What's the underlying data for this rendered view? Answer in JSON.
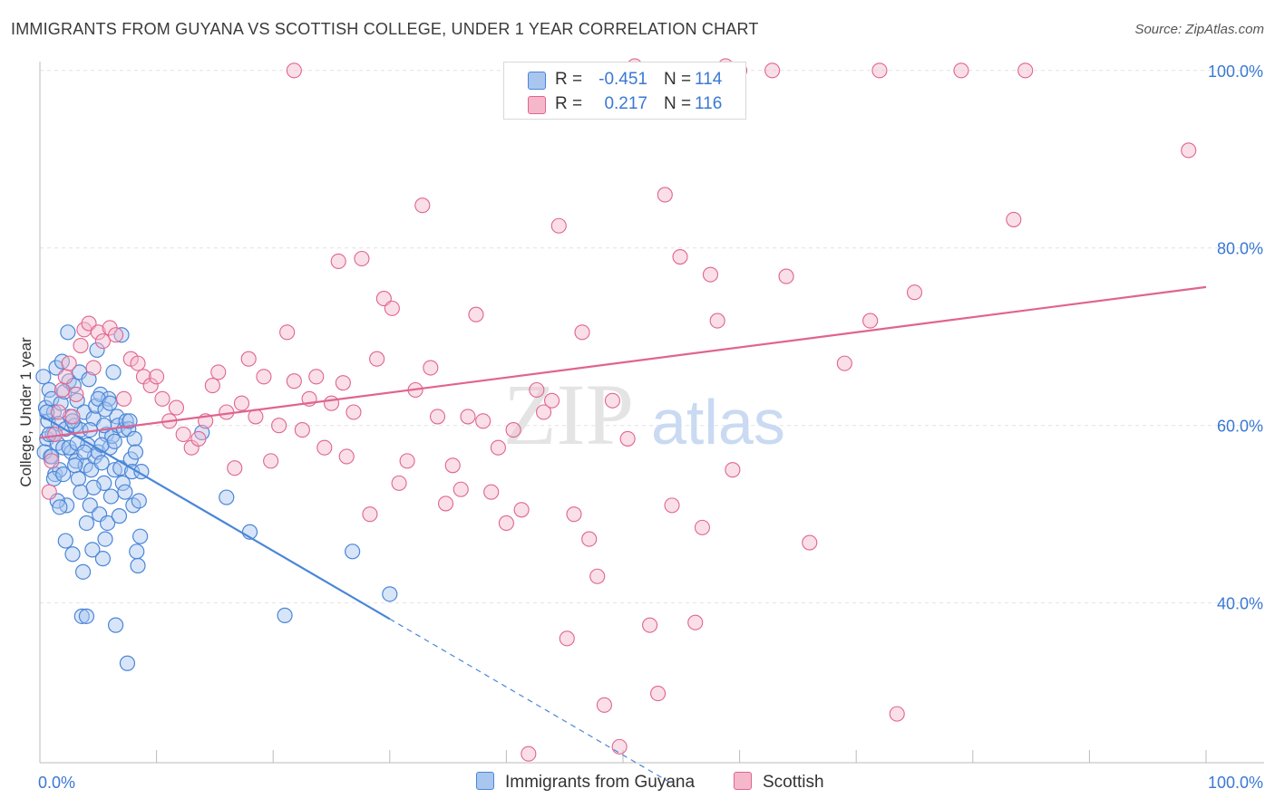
{
  "title": "IMMIGRANTS FROM GUYANA VS SCOTTISH COLLEGE, UNDER 1 YEAR CORRELATION CHART",
  "source": "Source: ZipAtlas.com",
  "watermark": {
    "zip": "ZIP",
    "atlas": "atlas"
  },
  "legend": {
    "rows": [
      {
        "r_label": "R =",
        "r_value": "-0.451",
        "n_label": "N =",
        "n_value": "114"
      },
      {
        "r_label": "R =",
        "r_value": "0.217",
        "n_label": "N =",
        "n_value": "116"
      }
    ]
  },
  "chart_data": {
    "type": "scatter",
    "ylabel": "College, Under 1 year",
    "xlim": [
      0,
      100
    ],
    "ylim": [
      22,
      101
    ],
    "x_tick_labels": {
      "left": "0.0%",
      "right": "100.0%"
    },
    "y_ticks": [
      {
        "value": 100,
        "label": "100.0%"
      },
      {
        "value": 80,
        "label": "80.0%"
      },
      {
        "value": 60,
        "label": "60.0%"
      },
      {
        "value": 40,
        "label": "40.0%"
      }
    ],
    "colors": {
      "blue": "#4a86d8",
      "blue_fill": "#a9c6ef",
      "pink": "#e0648f",
      "pink_fill": "#f5b8cb",
      "value_text": "#3a78d4",
      "grid": "#e2e2e2"
    },
    "series": [
      {
        "name": "Immigrants from Guyana",
        "color": "#4a86d8",
        "trend": {
          "x0": 0,
          "y0": 61.2,
          "x1": 30,
          "y1": 38.2,
          "dashed_to_x": 54
        },
        "points": [
          [
            0.3,
            65.5
          ],
          [
            0.5,
            62.0
          ],
          [
            0.6,
            58.5
          ],
          [
            0.7,
            60.5
          ],
          [
            0.8,
            64.0
          ],
          [
            0.9,
            56.5
          ],
          [
            1.0,
            63.0
          ],
          [
            1.1,
            59.0
          ],
          [
            1.2,
            61.5
          ],
          [
            1.3,
            54.5
          ],
          [
            1.4,
            66.5
          ],
          [
            1.5,
            58.0
          ],
          [
            1.6,
            60.2
          ],
          [
            1.7,
            55.0
          ],
          [
            1.8,
            62.5
          ],
          [
            1.9,
            67.2
          ],
          [
            2.0,
            57.5
          ],
          [
            2.1,
            63.8
          ],
          [
            2.2,
            59.6
          ],
          [
            2.3,
            51.0
          ],
          [
            2.4,
            70.5
          ],
          [
            2.5,
            65.0
          ],
          [
            2.6,
            61.0
          ],
          [
            2.7,
            57.0
          ],
          [
            2.8,
            45.5
          ],
          [
            2.9,
            64.5
          ],
          [
            3.0,
            60.0
          ],
          [
            3.1,
            56.0
          ],
          [
            3.2,
            62.8
          ],
          [
            3.3,
            54.0
          ],
          [
            3.4,
            66.0
          ],
          [
            3.5,
            59.5
          ],
          [
            3.6,
            38.5
          ],
          [
            3.7,
            43.5
          ],
          [
            3.8,
            61.5
          ],
          [
            3.9,
            55.5
          ],
          [
            4.0,
            38.5
          ],
          [
            4.1,
            57.8
          ],
          [
            4.2,
            65.2
          ],
          [
            4.3,
            51.0
          ],
          [
            4.4,
            55.0
          ],
          [
            4.5,
            46.0
          ],
          [
            4.6,
            60.8
          ],
          [
            4.7,
            56.5
          ],
          [
            4.8,
            62.2
          ],
          [
            4.9,
            68.5
          ],
          [
            5.0,
            57.0
          ],
          [
            5.1,
            50.0
          ],
          [
            5.2,
            63.5
          ],
          [
            5.3,
            55.8
          ],
          [
            5.4,
            45.0
          ],
          [
            5.5,
            53.5
          ],
          [
            5.6,
            47.2
          ],
          [
            5.7,
            59.0
          ],
          [
            5.8,
            49.0
          ],
          [
            5.9,
            63.0
          ],
          [
            6.0,
            57.5
          ],
          [
            6.1,
            52.0
          ],
          [
            6.2,
            58.8
          ],
          [
            6.3,
            66.0
          ],
          [
            6.4,
            55.0
          ],
          [
            6.5,
            37.5
          ],
          [
            6.6,
            61.0
          ],
          [
            6.7,
            60.0
          ],
          [
            6.8,
            49.8
          ],
          [
            6.9,
            55.2
          ],
          [
            7.0,
            70.2
          ],
          [
            7.1,
            53.5
          ],
          [
            7.2,
            59.5
          ],
          [
            7.3,
            52.5
          ],
          [
            7.4,
            60.5
          ],
          [
            7.5,
            33.2
          ],
          [
            7.6,
            59.6
          ],
          [
            7.7,
            60.5
          ],
          [
            7.8,
            56.2
          ],
          [
            7.9,
            54.8
          ],
          [
            8.0,
            51.0
          ],
          [
            8.1,
            58.5
          ],
          [
            8.2,
            57.0
          ],
          [
            8.3,
            45.8
          ],
          [
            8.4,
            44.2
          ],
          [
            8.5,
            51.5
          ],
          [
            8.6,
            47.5
          ],
          [
            8.7,
            54.8
          ],
          [
            0.4,
            57.0
          ],
          [
            0.6,
            61.5
          ],
          [
            0.8,
            59.0
          ],
          [
            1.0,
            56.5
          ],
          [
            1.2,
            54.0
          ],
          [
            1.5,
            51.5
          ],
          [
            1.7,
            50.8
          ],
          [
            2.0,
            54.5
          ],
          [
            2.2,
            47.0
          ],
          [
            2.5,
            57.5
          ],
          [
            2.8,
            60.5
          ],
          [
            3.0,
            55.5
          ],
          [
            3.2,
            58.0
          ],
          [
            3.5,
            52.5
          ],
          [
            3.8,
            57.0
          ],
          [
            4.0,
            49.0
          ],
          [
            4.3,
            59.5
          ],
          [
            4.6,
            53.0
          ],
          [
            5.0,
            63.0
          ],
          [
            5.3,
            57.8
          ],
          [
            5.6,
            61.8
          ],
          [
            6.0,
            62.5
          ],
          [
            6.4,
            58.2
          ],
          [
            13.9,
            59.2
          ],
          [
            16.0,
            51.9
          ],
          [
            18.0,
            48.0
          ],
          [
            21.0,
            38.6
          ],
          [
            26.8,
            45.8
          ],
          [
            30.0,
            41.0
          ],
          [
            5.5,
            60.0
          ]
        ]
      },
      {
        "name": "Scottish",
        "color": "#e0648f",
        "trend": {
          "x0": 0,
          "y0": 58.6,
          "x1": 100,
          "y1": 75.6
        },
        "points": [
          [
            0.8,
            52.5
          ],
          [
            1.0,
            56.0
          ],
          [
            1.3,
            59.0
          ],
          [
            1.6,
            61.5
          ],
          [
            1.9,
            64.0
          ],
          [
            2.2,
            65.5
          ],
          [
            2.5,
            67.0
          ],
          [
            2.8,
            61.0
          ],
          [
            3.1,
            63.5
          ],
          [
            3.5,
            69.0
          ],
          [
            3.8,
            70.8
          ],
          [
            4.2,
            71.5
          ],
          [
            4.6,
            66.5
          ],
          [
            5.0,
            70.5
          ],
          [
            5.4,
            69.5
          ],
          [
            6.0,
            71.0
          ],
          [
            6.5,
            70.2
          ],
          [
            7.2,
            63.0
          ],
          [
            7.8,
            67.5
          ],
          [
            8.4,
            67.0
          ],
          [
            8.9,
            65.5
          ],
          [
            9.5,
            64.5
          ],
          [
            10.0,
            65.5
          ],
          [
            10.5,
            63.0
          ],
          [
            11.1,
            60.5
          ],
          [
            11.7,
            62.0
          ],
          [
            12.3,
            59.0
          ],
          [
            13.0,
            57.5
          ],
          [
            13.6,
            58.5
          ],
          [
            14.2,
            60.5
          ],
          [
            14.8,
            64.5
          ],
          [
            15.3,
            66.0
          ],
          [
            16.0,
            61.5
          ],
          [
            16.7,
            55.2
          ],
          [
            17.3,
            62.5
          ],
          [
            17.9,
            67.5
          ],
          [
            18.5,
            61.0
          ],
          [
            19.2,
            65.5
          ],
          [
            19.8,
            56.0
          ],
          [
            20.5,
            60.0
          ],
          [
            21.2,
            70.5
          ],
          [
            21.8,
            65.0
          ],
          [
            22.5,
            59.5
          ],
          [
            23.1,
            63.0
          ],
          [
            23.7,
            65.5
          ],
          [
            24.4,
            57.5
          ],
          [
            25.0,
            62.5
          ],
          [
            25.6,
            78.5
          ],
          [
            26.3,
            56.5
          ],
          [
            26.9,
            61.5
          ],
          [
            27.6,
            78.8
          ],
          [
            28.3,
            50.0
          ],
          [
            28.9,
            67.5
          ],
          [
            29.5,
            74.3
          ],
          [
            30.2,
            73.2
          ],
          [
            30.8,
            53.5
          ],
          [
            31.5,
            56.0
          ],
          [
            32.2,
            64.0
          ],
          [
            32.8,
            84.8
          ],
          [
            33.5,
            66.5
          ],
          [
            34.1,
            61.0
          ],
          [
            34.8,
            51.2
          ],
          [
            35.4,
            55.5
          ],
          [
            36.1,
            52.8
          ],
          [
            36.7,
            61.0
          ],
          [
            37.4,
            72.5
          ],
          [
            38.0,
            60.5
          ],
          [
            38.7,
            52.5
          ],
          [
            39.3,
            57.5
          ],
          [
            40.0,
            49.0
          ],
          [
            40.6,
            59.5
          ],
          [
            41.3,
            50.5
          ],
          [
            41.9,
            23.0
          ],
          [
            42.6,
            64.0
          ],
          [
            43.2,
            61.5
          ],
          [
            43.9,
            62.8
          ],
          [
            44.5,
            82.5
          ],
          [
            45.2,
            36.0
          ],
          [
            45.8,
            50.0
          ],
          [
            46.5,
            70.5
          ],
          [
            47.1,
            47.2
          ],
          [
            47.8,
            43.0
          ],
          [
            48.4,
            28.5
          ],
          [
            49.1,
            62.8
          ],
          [
            49.7,
            23.8
          ],
          [
            50.4,
            58.5
          ],
          [
            51.0,
            100.5
          ],
          [
            51.7,
            96.5
          ],
          [
            52.3,
            37.5
          ],
          [
            53.0,
            29.8
          ],
          [
            53.6,
            86.0
          ],
          [
            54.2,
            51.0
          ],
          [
            54.9,
            79.0
          ],
          [
            55.5,
            99.0
          ],
          [
            56.2,
            37.8
          ],
          [
            56.8,
            48.5
          ],
          [
            57.5,
            77.0
          ],
          [
            58.1,
            71.8
          ],
          [
            58.8,
            100.5
          ],
          [
            59.4,
            55.0
          ],
          [
            60.0,
            100.0
          ],
          [
            62.8,
            100.0
          ],
          [
            64.0,
            76.8
          ],
          [
            66.0,
            46.8
          ],
          [
            69.0,
            67.0
          ],
          [
            71.2,
            71.8
          ],
          [
            72.0,
            100.0
          ],
          [
            73.5,
            27.5
          ],
          [
            75.0,
            75.0
          ],
          [
            79.0,
            100.0
          ],
          [
            83.5,
            83.2
          ],
          [
            84.5,
            100.0
          ],
          [
            98.5,
            91.0
          ],
          [
            21.8,
            100.0
          ],
          [
            40.8,
            99.8
          ],
          [
            26.0,
            64.8
          ]
        ]
      }
    ]
  },
  "bottom_legend": [
    {
      "label": "Immigrants from Guyana"
    },
    {
      "label": "Scottish"
    }
  ]
}
